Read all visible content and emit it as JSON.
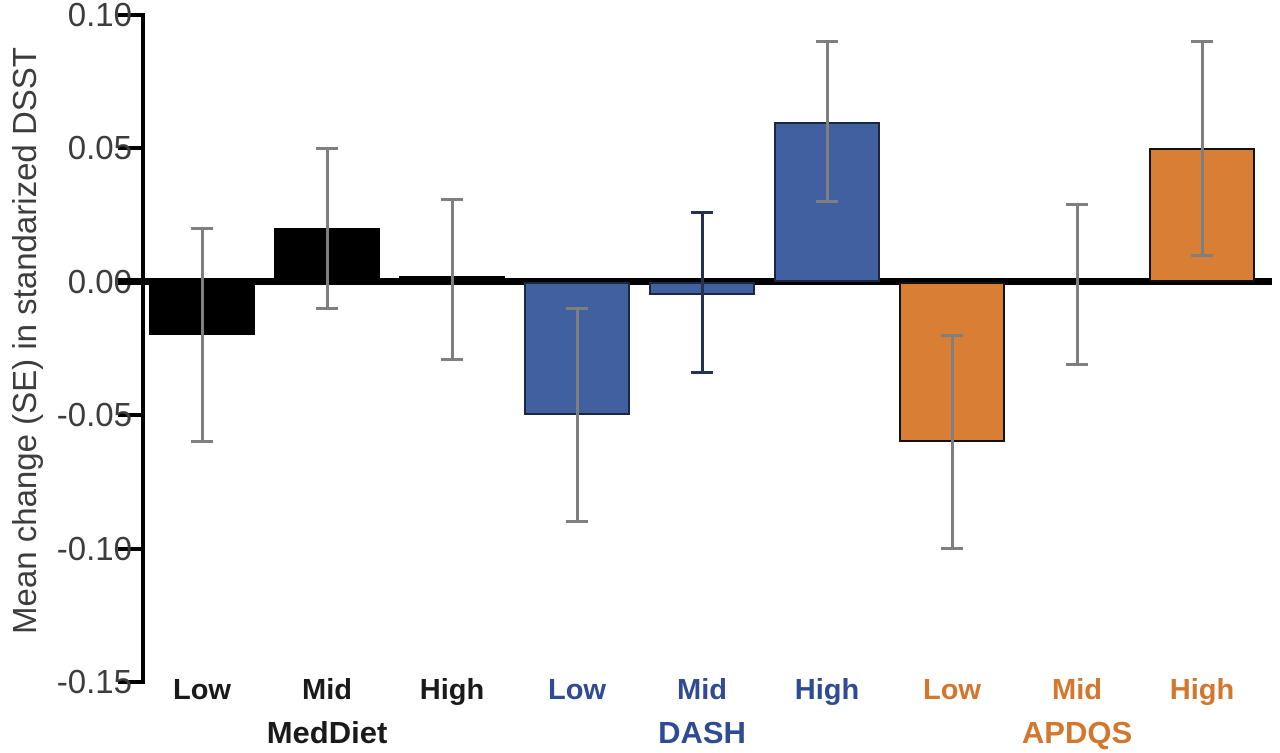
{
  "chart_data": {
    "type": "bar",
    "title": "",
    "xlabel": "",
    "ylabel": "Mean change (SE) in standarized DSST",
    "ylim": [
      -0.15,
      0.1
    ],
    "yticks": [
      0.1,
      0.05,
      0.0,
      -0.05,
      -0.1,
      -0.15
    ],
    "ytick_labels": [
      "0.10",
      "0.05",
      "0.00",
      "-0.05",
      "-0.10",
      "-0.15"
    ],
    "grid": false,
    "legend": false,
    "error_bars": true,
    "colors": {
      "axis_text": "#3d3d3d",
      "axis_line": "#000000",
      "error_bar": "#7f7f7f",
      "dash_mid_error_bar": "#243150"
    },
    "groups": [
      {
        "name": "MedDiet",
        "label_color": "#1a1a1a",
        "fill": "#000000",
        "outline": "#000000",
        "bars": [
          {
            "category": "Low",
            "value": -0.02,
            "err_low": -0.06,
            "err_high": 0.02
          },
          {
            "category": "Mid",
            "value": 0.02,
            "err_low": -0.01,
            "err_high": 0.05
          },
          {
            "category": "High",
            "value": 0.002,
            "err_low": -0.029,
            "err_high": 0.031
          }
        ]
      },
      {
        "name": "DASH",
        "label_color": "#2f4b94",
        "fill": "#41609F",
        "outline": "#1b2742",
        "bars": [
          {
            "category": "Low",
            "value": -0.05,
            "err_low": -0.09,
            "err_high": -0.01
          },
          {
            "category": "Mid",
            "value": -0.005,
            "err_low": -0.034,
            "err_high": 0.026,
            "err_color": "#243150"
          },
          {
            "category": "High",
            "value": 0.06,
            "err_low": 0.03,
            "err_high": 0.09
          }
        ]
      },
      {
        "name": "APDQS",
        "label_color": "#d4772e",
        "fill": "#D87E35",
        "outline": "#111111",
        "bars": [
          {
            "category": "Low",
            "value": -0.06,
            "err_low": -0.1,
            "err_high": -0.02
          },
          {
            "category": "Mid",
            "value": 0.0,
            "err_low": -0.031,
            "err_high": 0.029
          },
          {
            "category": "High",
            "value": 0.05,
            "err_low": 0.01,
            "err_high": 0.09
          }
        ]
      }
    ]
  }
}
